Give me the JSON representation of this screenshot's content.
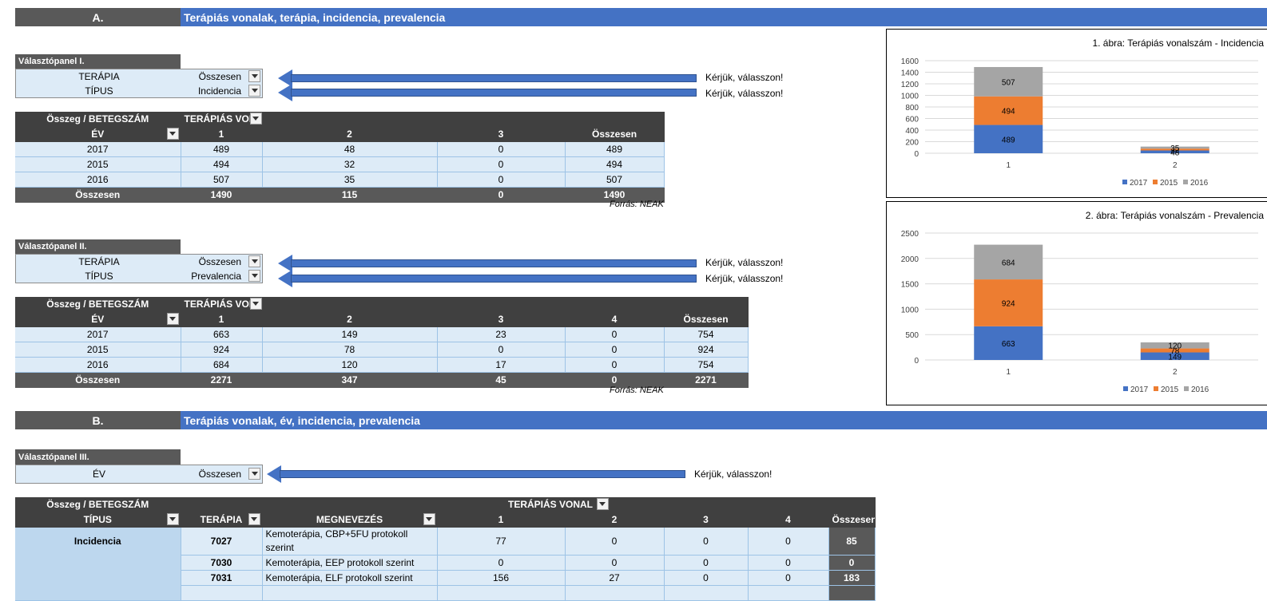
{
  "sectionA": {
    "letter": "A.",
    "title": "Terápiás vonalak, terápia, incidencia, prevalencia"
  },
  "sectionB": {
    "letter": "B.",
    "title": "Terápiás vonalak, év, incidencia, prevalencia"
  },
  "panel1": {
    "header": "Választópanel I.",
    "rows": [
      {
        "label": "TERÁPIA",
        "value": "Összesen"
      },
      {
        "label": "TÍPUS",
        "value": "Incidencia"
      }
    ]
  },
  "panel2": {
    "header": "Választópanel II.",
    "rows": [
      {
        "label": "TERÁPIA",
        "value": "Összesen"
      },
      {
        "label": "TÍPUS",
        "value": "Prevalencia"
      }
    ]
  },
  "panel3": {
    "header": "Választópanel III.",
    "rows": [
      {
        "label": "ÉV",
        "value": "Összesen"
      }
    ]
  },
  "prompt": "Kérjük, válasszon!",
  "source": "Forrás: NEAK",
  "pivot1": {
    "h1": "Összeg / BETEGSZÁM",
    "h2": "TERÁPIÁS VON",
    "cols": [
      "ÉV",
      "1",
      "2",
      "3",
      "Összesen"
    ],
    "rows": [
      [
        "2017",
        "489",
        "48",
        "0",
        "489"
      ],
      [
        "2015",
        "494",
        "32",
        "0",
        "494"
      ],
      [
        "2016",
        "507",
        "35",
        "0",
        "507"
      ]
    ],
    "total": [
      "Összesen",
      "1490",
      "115",
      "0",
      "1490"
    ]
  },
  "pivot2": {
    "h1": "Összeg / BETEGSZÁM",
    "h2": "TERÁPIÁS VON",
    "cols": [
      "ÉV",
      "1",
      "2",
      "3",
      "4",
      "Összesen"
    ],
    "rows": [
      [
        "2017",
        "663",
        "149",
        "23",
        "0",
        "754"
      ],
      [
        "2015",
        "924",
        "78",
        "0",
        "0",
        "924"
      ],
      [
        "2016",
        "684",
        "120",
        "17",
        "0",
        "754"
      ]
    ],
    "total": [
      "Összesen",
      "2271",
      "347",
      "45",
      "0",
      "2271"
    ]
  },
  "pivot3": {
    "h1": "Összeg / BETEGSZÁM",
    "h2": "TERÁPIÁS VONAL",
    "cols": [
      "TÍPUS",
      "TERÁPIA",
      "MEGNEVEZÉS",
      "1",
      "2",
      "3",
      "4",
      "Összesen"
    ],
    "group": "Incidencia",
    "rows": [
      [
        "7027",
        "Kemoterápia, CBP+5FU protokoll szerint",
        "77",
        "0",
        "0",
        "0",
        "85"
      ],
      [
        "7030",
        "Kemoterápia, EEP protokoll szerint",
        "0",
        "0",
        "0",
        "0",
        "0"
      ],
      [
        "7031",
        "Kemoterápia, ELF protokoll szerint",
        "156",
        "27",
        "0",
        "0",
        "183"
      ]
    ]
  },
  "colors": {
    "s2017": "#4472c4",
    "s2015": "#ed7d31",
    "s2016": "#a5a5a5"
  },
  "chart_data": [
    {
      "type": "bar",
      "stacked": true,
      "title": "1. ábra: Terápiás vonalszám - Incidencia",
      "categories": [
        "1",
        "2"
      ],
      "series": [
        {
          "name": "2017",
          "values": [
            489,
            48
          ]
        },
        {
          "name": "2015",
          "values": [
            494,
            32
          ]
        },
        {
          "name": "2016",
          "values": [
            507,
            35
          ]
        }
      ],
      "yticks": [
        "0",
        "200",
        "400",
        "600",
        "800",
        "1000",
        "1200",
        "1400",
        "1600"
      ],
      "ylim": [
        0,
        1600
      ],
      "grid": true,
      "legend": "bottom"
    },
    {
      "type": "bar",
      "stacked": true,
      "title": "2. ábra: Terápiás vonalszám - Prevalencia",
      "categories": [
        "1",
        "2"
      ],
      "series": [
        {
          "name": "2017",
          "values": [
            663,
            149
          ]
        },
        {
          "name": "2015",
          "values": [
            924,
            78
          ]
        },
        {
          "name": "2016",
          "values": [
            684,
            120
          ]
        }
      ],
      "yticks": [
        "0",
        "500",
        "1000",
        "1500",
        "2000",
        "2500"
      ],
      "ylim": [
        0,
        2500
      ],
      "grid": true,
      "legend": "bottom"
    }
  ]
}
